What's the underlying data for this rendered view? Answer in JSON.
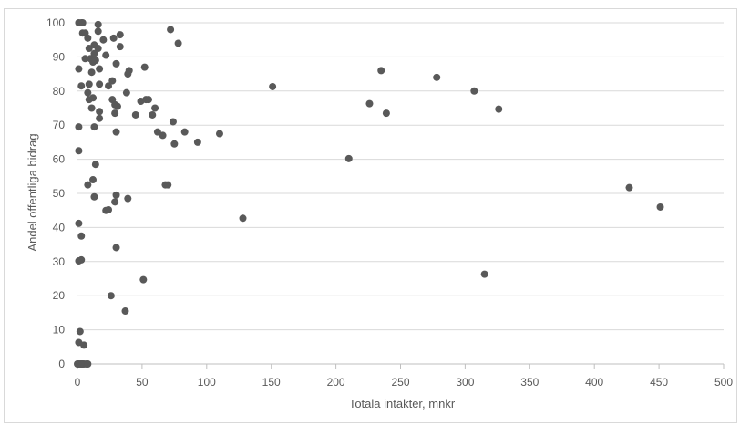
{
  "chart_data": {
    "type": "scatter",
    "title": "",
    "xlabel": "Totala intäkter, mnkr",
    "ylabel": "Andel offentliga bidrag",
    "xlim": [
      0,
      500
    ],
    "ylim": [
      0,
      100
    ],
    "x_ticks": [
      0,
      50,
      100,
      150,
      200,
      250,
      300,
      350,
      400,
      450,
      500
    ],
    "y_ticks": [
      0,
      10,
      20,
      30,
      40,
      50,
      60,
      70,
      80,
      90,
      100
    ],
    "grid": "horizontal",
    "legend": "none",
    "marker_color": "#595959",
    "series": [
      {
        "points": [
          [
            1,
            100
          ],
          [
            3,
            100
          ],
          [
            4,
            100
          ],
          [
            16,
            99.5
          ],
          [
            72,
            98
          ],
          [
            4,
            97
          ],
          [
            6,
            97
          ],
          [
            16,
            97.5
          ],
          [
            33,
            96.5
          ],
          [
            8,
            95.5
          ],
          [
            20,
            95
          ],
          [
            28,
            95.5
          ],
          [
            78,
            94
          ],
          [
            13,
            93.5
          ],
          [
            33,
            93
          ],
          [
            9,
            92.5
          ],
          [
            16,
            92.5
          ],
          [
            13,
            91
          ],
          [
            22,
            90.5
          ],
          [
            6,
            89.5
          ],
          [
            10,
            89.5
          ],
          [
            14,
            89
          ],
          [
            12,
            88.5
          ],
          [
            30,
            88
          ],
          [
            52,
            87
          ],
          [
            1,
            86.5
          ],
          [
            17,
            86.5
          ],
          [
            11,
            85.5
          ],
          [
            40,
            86
          ],
          [
            39,
            85
          ],
          [
            9,
            82
          ],
          [
            3,
            81.5
          ],
          [
            17,
            82
          ],
          [
            27,
            83
          ],
          [
            24,
            81.5
          ],
          [
            38,
            79.5
          ],
          [
            8,
            79.5
          ],
          [
            9,
            77.5
          ],
          [
            12,
            78
          ],
          [
            27,
            77.5
          ],
          [
            49,
            77
          ],
          [
            53,
            77.5
          ],
          [
            55,
            77.5
          ],
          [
            11,
            75
          ],
          [
            29,
            76
          ],
          [
            31,
            75.5
          ],
          [
            60,
            75
          ],
          [
            17,
            74
          ],
          [
            17,
            72
          ],
          [
            29,
            73.5
          ],
          [
            45,
            73
          ],
          [
            58,
            73
          ],
          [
            74,
            71
          ],
          [
            13,
            69.5
          ],
          [
            1,
            69.5
          ],
          [
            30,
            68
          ],
          [
            62,
            68
          ],
          [
            66,
            67
          ],
          [
            83,
            68
          ],
          [
            75,
            64.5
          ],
          [
            93,
            65
          ],
          [
            110,
            67.5
          ],
          [
            151,
            81.3
          ],
          [
            210,
            60.2
          ],
          [
            226,
            76.3
          ],
          [
            235,
            86
          ],
          [
            239,
            73.5
          ],
          [
            278,
            84
          ],
          [
            307,
            80
          ],
          [
            326,
            74.7
          ],
          [
            427,
            51.7
          ],
          [
            451,
            46
          ],
          [
            1,
            62.5
          ],
          [
            14,
            58.5
          ],
          [
            12,
            54
          ],
          [
            8,
            52.5
          ],
          [
            68,
            52.5
          ],
          [
            70,
            52.5
          ],
          [
            30,
            49.5
          ],
          [
            13,
            49
          ],
          [
            29,
            47.5
          ],
          [
            39,
            48.5
          ],
          [
            22,
            45
          ],
          [
            24,
            45.2
          ],
          [
            128,
            42.7
          ],
          [
            1,
            41.2
          ],
          [
            3,
            37.5
          ],
          [
            30,
            34.1
          ],
          [
            1,
            30.2
          ],
          [
            3,
            30.5
          ],
          [
            51,
            24.7
          ],
          [
            315,
            26.3
          ],
          [
            26,
            20
          ],
          [
            37,
            15.5
          ],
          [
            2,
            9.5
          ],
          [
            1,
            6.3
          ],
          [
            5,
            5.5
          ],
          [
            0,
            0
          ],
          [
            1,
            0
          ],
          [
            2,
            0
          ],
          [
            3,
            0
          ],
          [
            4,
            0
          ],
          [
            5,
            0
          ],
          [
            7,
            0
          ],
          [
            8,
            0
          ]
        ]
      }
    ]
  }
}
